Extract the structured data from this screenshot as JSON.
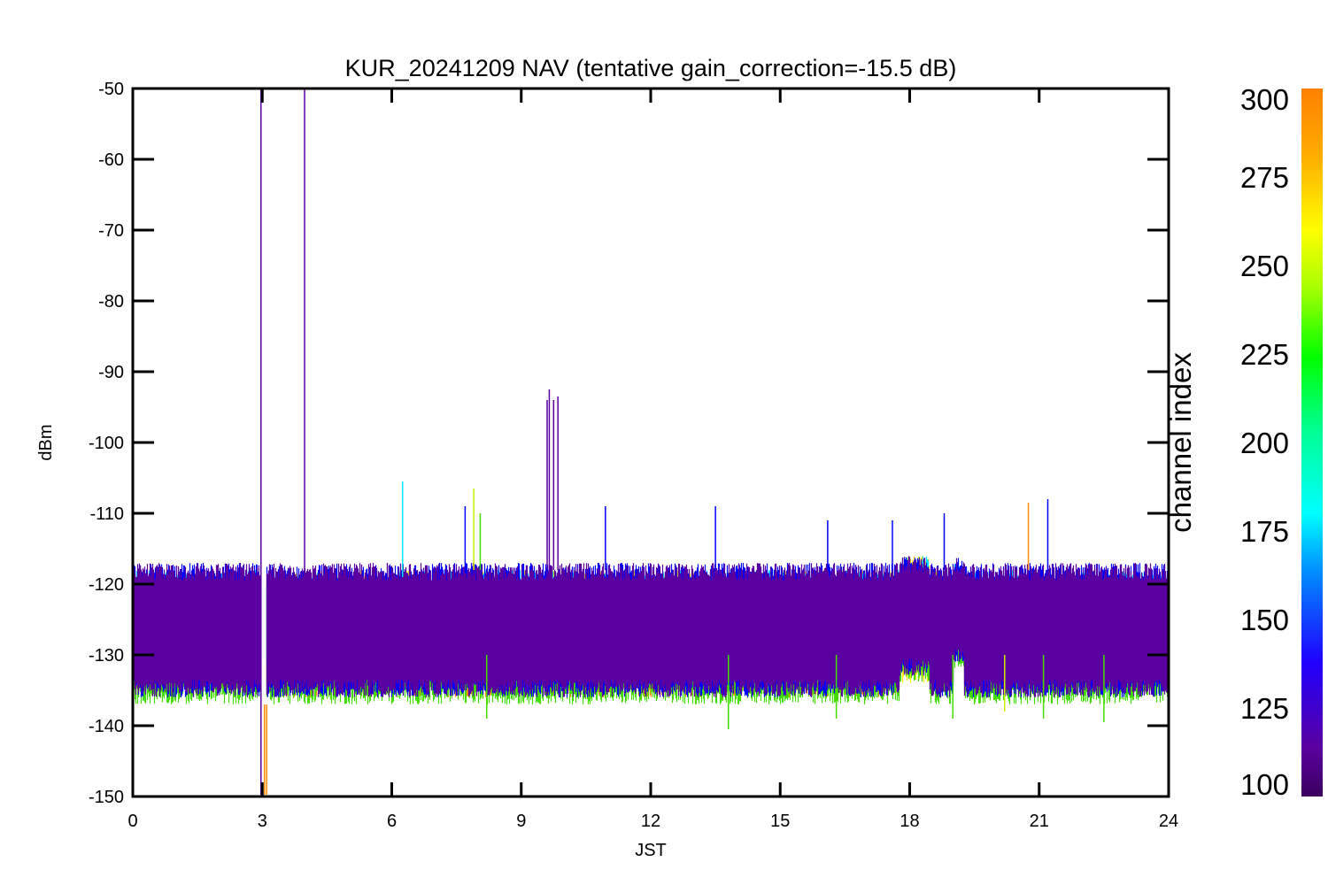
{
  "chart_data": {
    "type": "line",
    "title": "KUR_20241209 NAV (tentative gain_correction=-15.5 dB)",
    "xlabel": "JST",
    "ylabel": "dBm",
    "xlim": [
      0,
      24
    ],
    "ylim": [
      -150,
      -50
    ],
    "x_ticks": [
      "0",
      "3",
      "6",
      "9",
      "12",
      "15",
      "18",
      "21",
      "24"
    ],
    "y_ticks": [
      "-50",
      "-60",
      "-70",
      "-80",
      "-90",
      "-100",
      "-110",
      "-120",
      "-130",
      "-140",
      "-150"
    ],
    "grid": false,
    "colorbar": {
      "label": "channel index",
      "range": [
        100,
        300
      ],
      "ticks": [
        "100",
        "125",
        "150",
        "175",
        "200",
        "225",
        "250",
        "275",
        "300"
      ]
    },
    "series": [
      {
        "channel": 300,
        "color": "#ff8c00",
        "min": [
          -133,
          -136,
          -128,
          -133,
          -128,
          -133
        ],
        "max": [
          -121,
          -119,
          -122,
          -119,
          -122,
          -121
        ]
      },
      {
        "channel": 275,
        "color": "#ffee00",
        "min": [
          -135,
          -135,
          -134,
          -135,
          -131,
          -135
        ],
        "max": [
          -119,
          -118,
          -116,
          -118,
          -118,
          -119
        ]
      },
      {
        "channel": 240,
        "color": "#44dd00",
        "min": [
          -137,
          -137,
          -134,
          -137,
          -132,
          -137
        ],
        "max": [
          -120,
          -120,
          -118,
          -120,
          -119,
          -120
        ]
      },
      {
        "channel": 175,
        "color": "#00e0ff",
        "min": [
          -132,
          -132,
          -131,
          -132,
          -130,
          -132
        ],
        "max": [
          -118,
          -118,
          -116,
          -118,
          -117,
          -118
        ]
      },
      {
        "channel": 140,
        "color": "#0000ff",
        "min": [
          -136,
          -136,
          -133,
          -136,
          -131,
          -136
        ],
        "max": [
          -117,
          -117,
          -116,
          -117,
          -116,
          -117
        ]
      },
      {
        "channel": 110,
        "color": "#5a00a0",
        "min": [
          -136,
          -136,
          -133,
          -136,
          -131,
          -136
        ],
        "max": [
          -117,
          -117,
          -116,
          -117,
          -116,
          -117
        ]
      }
    ],
    "series_x_breaks": [
      0,
      3.02,
      17.75,
      18.45,
      19.0,
      19.25
    ],
    "gaps": [
      [
        2.97,
        3.08
      ]
    ],
    "spikes": [
      {
        "x": 2.97,
        "y0": -150,
        "y1": -50,
        "color": "#5a00a0"
      },
      {
        "x": 3.05,
        "y0": -150,
        "y1": -137,
        "color": "#ff8c00"
      },
      {
        "x": 3.1,
        "y0": -150,
        "y1": -137,
        "color": "#ff8c00"
      },
      {
        "x": 3.98,
        "y0": -120,
        "y1": -50,
        "color": "#5a00a0"
      },
      {
        "x": 6.25,
        "y0": -119,
        "y1": -105.5,
        "color": "#00e0ff"
      },
      {
        "x": 7.7,
        "y0": -118,
        "y1": -109,
        "color": "#0000ff"
      },
      {
        "x": 7.9,
        "y0": -118,
        "y1": -106.5,
        "color": "#ccee00"
      },
      {
        "x": 8.05,
        "y0": -118,
        "y1": -110,
        "color": "#44dd00"
      },
      {
        "x": 9.6,
        "y0": -118,
        "y1": -94,
        "color": "#5a00a0"
      },
      {
        "x": 9.65,
        "y0": -118,
        "y1": -92.5,
        "color": "#5a00a0"
      },
      {
        "x": 9.75,
        "y0": -118,
        "y1": -94,
        "color": "#5a00a0"
      },
      {
        "x": 9.85,
        "y0": -118,
        "y1": -93.5,
        "color": "#5a00a0"
      },
      {
        "x": 10.95,
        "y0": -118,
        "y1": -109,
        "color": "#0000ff"
      },
      {
        "x": 13.5,
        "y0": -118,
        "y1": -109,
        "color": "#0000ff"
      },
      {
        "x": 16.1,
        "y0": -118,
        "y1": -111,
        "color": "#0000ff"
      },
      {
        "x": 17.6,
        "y0": -118,
        "y1": -111,
        "color": "#0000ff"
      },
      {
        "x": 18.8,
        "y0": -118,
        "y1": -110,
        "color": "#0000ff"
      },
      {
        "x": 20.75,
        "y0": -118,
        "y1": -108.5,
        "color": "#ff8c00"
      },
      {
        "x": 21.2,
        "y0": -118,
        "y1": -108,
        "color": "#0000ff"
      },
      {
        "x": 8.2,
        "y0": -139,
        "y1": -130,
        "color": "#44dd00"
      },
      {
        "x": 13.8,
        "y0": -140.5,
        "y1": -130,
        "color": "#44dd00"
      },
      {
        "x": 16.3,
        "y0": -139,
        "y1": -130,
        "color": "#44dd00"
      },
      {
        "x": 19.0,
        "y0": -139,
        "y1": -130,
        "color": "#44dd00"
      },
      {
        "x": 20.2,
        "y0": -138,
        "y1": -130,
        "color": "#ccee00"
      },
      {
        "x": 21.1,
        "y0": -139,
        "y1": -130,
        "color": "#44dd00"
      },
      {
        "x": 22.5,
        "y0": -139.5,
        "y1": -130,
        "color": "#44dd00"
      }
    ]
  }
}
